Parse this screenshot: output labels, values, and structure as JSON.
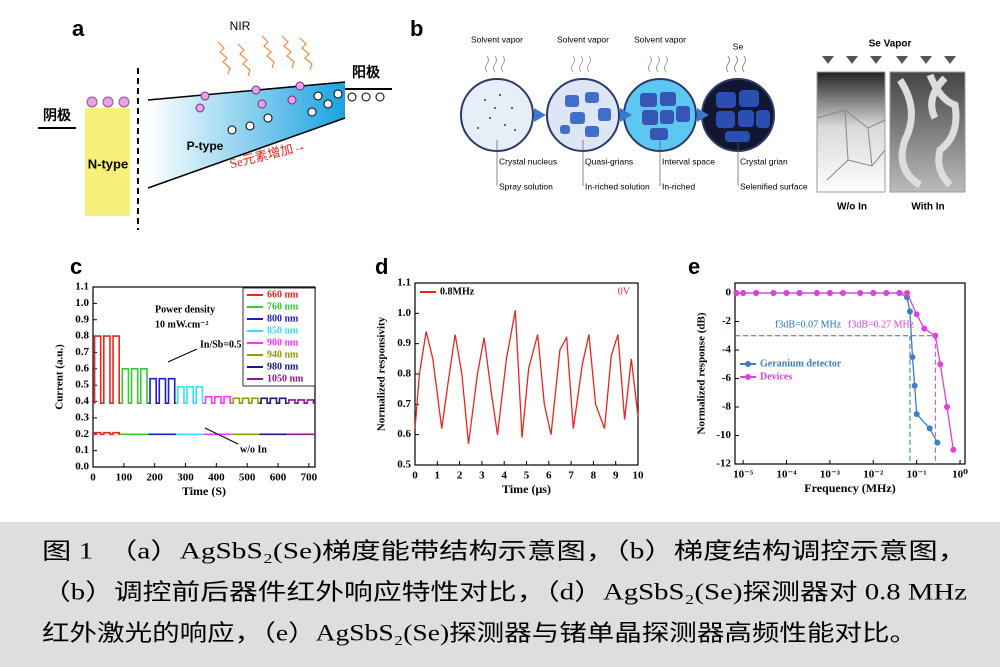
{
  "figure": {
    "panels": {
      "a": {
        "label": "a",
        "nir": "NIR",
        "anode": "阳极",
        "cathode": "阴极",
        "n_type": "N-type",
        "p_type": "P-type",
        "se_arrow": "Se元素增加→"
      },
      "b": {
        "label": "b",
        "steps": [
          {
            "vapor": "Solvent vapor",
            "top": "Crystal nucleus",
            "bottom": "Spray solution"
          },
          {
            "vapor": "Solvent vapor",
            "top": "Quasi-grians",
            "bottom": "In-riched solution"
          },
          {
            "vapor": "Solvent vapor",
            "top": "Interval space",
            "bottom": "In-riched"
          },
          {
            "vapor": "Se",
            "top": "Crystal grian",
            "bottom": "Selenified surface"
          }
        ],
        "se_vapor": "Se Vapor",
        "without": "W/o In",
        "with": "With In"
      }
    },
    "caption": {
      "lines": [
        "图 1　（a）AgSbS₂(Se)梯度能带结构示意图，（b）梯度结构调控示意图，",
        "（b）调控前后器件红外响应特性对比，（d）AgSbS₂(Se)探测器对 0.8 MHz",
        "红外激光的响应，（e）AgSbS₂(Se)探测器与锗单晶探测器高频性能对比。"
      ]
    }
  },
  "chart_data": [
    {
      "type": "line",
      "label": "c",
      "x_label": "Time (S)",
      "y_label": "Current (a.u.)",
      "xlim": [
        0,
        720
      ],
      "ylim": [
        0,
        1.1
      ],
      "xticks": [
        0,
        100,
        200,
        300,
        400,
        500,
        600,
        700
      ],
      "yticks": [
        {
          "value": 0,
          "label": "0.0"
        },
        0.1,
        0.2,
        0.3,
        0.4,
        0.5,
        0.6,
        0.7,
        0.8,
        0.9,
        {
          "value": 1,
          "label": "1.0"
        },
        1.1
      ],
      "annotations": [
        {
          "text": "Power density"
        },
        {
          "text": "10 mW.cm⁻²"
        },
        {
          "text": "In/Sb=0.5"
        },
        {
          "text": "w/o In"
        }
      ],
      "legend": "upper right",
      "series": [
        {
          "name": "660 nm",
          "color": "#e8261f",
          "x": [
            0,
            5,
            5,
            25,
            25,
            35,
            35,
            55,
            55,
            65,
            65,
            85,
            85,
            90,
            90,
            0,
            5,
            5,
            25,
            25,
            35,
            35,
            55,
            55,
            65,
            65,
            85,
            85,
            90
          ],
          "values": [
            0.39,
            0.39,
            0.8,
            0.8,
            0.39,
            0.39,
            0.8,
            0.8,
            0.39,
            0.39,
            0.8,
            0.8,
            0.39,
            0.39,
            null,
            0.2,
            0.2,
            0.21,
            0.21,
            0.2,
            0.2,
            0.21,
            0.21,
            0.2,
            0.2,
            0.21,
            0.21,
            0.2,
            0.2
          ]
        },
        {
          "name": "760 nm",
          "color": "#33cc33",
          "x": [
            90,
            95,
            95,
            115,
            115,
            125,
            125,
            145,
            145,
            155,
            155,
            175,
            175,
            180,
            180,
            90,
            180
          ],
          "values": [
            0.39,
            0.39,
            0.6,
            0.6,
            0.39,
            0.39,
            0.6,
            0.6,
            0.39,
            0.39,
            0.6,
            0.6,
            0.39,
            0.39,
            null,
            0.2,
            0.2
          ]
        },
        {
          "name": "800 nm",
          "color": "#1f1fbf",
          "x": [
            180,
            185,
            185,
            205,
            205,
            215,
            215,
            235,
            235,
            245,
            245,
            265,
            265,
            270,
            270,
            180,
            270
          ],
          "values": [
            0.39,
            0.39,
            0.54,
            0.54,
            0.39,
            0.39,
            0.54,
            0.54,
            0.39,
            0.39,
            0.54,
            0.54,
            0.39,
            0.39,
            null,
            0.2,
            0.2
          ]
        },
        {
          "name": "850 nm",
          "color": "#33e0ff",
          "x": [
            270,
            275,
            275,
            295,
            295,
            305,
            305,
            325,
            325,
            335,
            335,
            355,
            355,
            360,
            360,
            270,
            360
          ],
          "values": [
            0.39,
            0.39,
            0.49,
            0.49,
            0.39,
            0.39,
            0.49,
            0.49,
            0.39,
            0.39,
            0.49,
            0.49,
            0.39,
            0.39,
            null,
            0.2,
            0.2
          ]
        },
        {
          "name": "900 nm",
          "color": "#ff33ff",
          "x": [
            360,
            365,
            365,
            385,
            385,
            395,
            395,
            415,
            415,
            425,
            425,
            445,
            445,
            450,
            450,
            360,
            450
          ],
          "values": [
            0.39,
            0.39,
            0.43,
            0.43,
            0.39,
            0.39,
            0.43,
            0.43,
            0.39,
            0.39,
            0.43,
            0.43,
            0.39,
            0.39,
            null,
            0.2,
            0.2
          ]
        },
        {
          "name": "940 nm",
          "color": "#999900",
          "x": [
            450,
            455,
            455,
            475,
            475,
            485,
            485,
            505,
            505,
            515,
            515,
            535,
            535,
            540,
            540,
            450,
            540
          ],
          "values": [
            0.39,
            0.39,
            0.42,
            0.42,
            0.39,
            0.39,
            0.42,
            0.42,
            0.39,
            0.39,
            0.42,
            0.42,
            0.39,
            0.39,
            null,
            0.2,
            0.2
          ]
        },
        {
          "name": "980 nm",
          "color": "#1a1a7a",
          "x": [
            540,
            545,
            545,
            565,
            565,
            575,
            575,
            595,
            595,
            605,
            605,
            625,
            625,
            630,
            630,
            540,
            630
          ],
          "values": [
            0.39,
            0.39,
            0.42,
            0.42,
            0.39,
            0.39,
            0.42,
            0.42,
            0.39,
            0.39,
            0.42,
            0.42,
            0.39,
            0.39,
            null,
            0.2,
            0.2
          ]
        },
        {
          "name": "1050 nm",
          "color": "#8b1a8b",
          "x": [
            630,
            635,
            635,
            655,
            655,
            665,
            665,
            685,
            685,
            695,
            695,
            715,
            715,
            720,
            720,
            630,
            720
          ],
          "values": [
            0.39,
            0.39,
            0.41,
            0.41,
            0.39,
            0.39,
            0.41,
            0.41,
            0.39,
            0.39,
            0.41,
            0.41,
            0.39,
            0.39,
            null,
            0.2,
            0.2
          ]
        }
      ]
    },
    {
      "type": "line",
      "label": "d",
      "x_label": "Time (μs)",
      "y_label": "Normalized responsivity",
      "xlim": [
        0,
        10
      ],
      "ylim": [
        0.5,
        1.1
      ],
      "xticks": [
        0,
        1,
        2,
        3,
        4,
        5,
        6,
        7,
        8,
        9,
        10
      ],
      "yticks": [
        0.5,
        0.6,
        0.7,
        0.8,
        0.9,
        {
          "value": 1,
          "label": "1.0"
        },
        1.1
      ],
      "annotations": [
        {
          "text": "0V",
          "color": "#e8261f"
        }
      ],
      "legend": "upper left",
      "series": [
        {
          "name": "0.8MHz",
          "color": "#e8261f",
          "x": [
            0,
            0.2,
            0.5,
            0.8,
            1.2,
            1.5,
            1.8,
            2.1,
            2.4,
            2.8,
            3.1,
            3.4,
            3.7,
            4.1,
            4.5,
            4.8,
            5.1,
            5.5,
            5.8,
            6.1,
            6.5,
            6.8,
            7.1,
            7.5,
            7.8,
            8.1,
            8.5,
            8.8,
            9.1,
            9.4,
            9.7,
            10
          ],
          "values": [
            0.62,
            0.8,
            0.94,
            0.85,
            0.62,
            0.78,
            0.93,
            0.8,
            0.57,
            0.8,
            0.92,
            0.75,
            0.6,
            0.85,
            1.01,
            0.59,
            0.82,
            0.93,
            0.7,
            0.6,
            0.88,
            0.92,
            0.62,
            0.83,
            0.93,
            0.7,
            0.62,
            0.86,
            0.93,
            0.65,
            0.85,
            0.66
          ]
        }
      ]
    },
    {
      "type": "line",
      "label": "e",
      "x_label": "Frequency (MHz)",
      "y_label": "Normalized response (dB)",
      "xscale": "log",
      "markers": true,
      "xlim": [
        6.5e-06,
        1.3
      ],
      "ylim": [
        -12,
        0.7
      ],
      "xticks": [
        {
          "value": 1e-05,
          "label": "10⁻⁵"
        },
        {
          "value": 0.0001,
          "label": "10⁻⁴"
        },
        {
          "value": 0.001,
          "label": "10⁻³"
        },
        {
          "value": 0.01,
          "label": "10⁻²"
        },
        {
          "value": 0.1,
          "label": "10⁻¹"
        },
        {
          "value": 1,
          "label": "10⁰"
        }
      ],
      "yticks": [
        0,
        -2,
        -4,
        -6,
        -8,
        -10,
        -12
      ],
      "hlines": [
        {
          "y": -3,
          "color": "#1f77b4"
        }
      ],
      "vlines": [
        {
          "x": 0.07,
          "color": "#1f77b4"
        },
        {
          "x": 0.27,
          "color": "#e040e0"
        }
      ],
      "annotations": [
        {
          "text": "f3dB=0.07 MHz",
          "color": "#1f77b4"
        },
        {
          "text": "f3dB=0.27 MHz",
          "color": "#e040e0"
        }
      ],
      "legend": "lower left",
      "series": [
        {
          "name": "Geranium detector",
          "color": "#3a7fc8",
          "x": [
            7e-06,
            1e-05,
            2e-05,
            5e-05,
            0.0001,
            0.0002,
            0.0005,
            0.001,
            0.002,
            0.005,
            0.01,
            0.02,
            0.04,
            0.06,
            0.07,
            0.08,
            0.09,
            0.1,
            0.2,
            0.3
          ],
          "values": [
            0,
            0,
            0,
            0,
            0,
            0,
            0,
            0,
            0,
            0,
            0,
            0,
            0,
            -0.3,
            -1.3,
            -4.5,
            -6.5,
            -8.5,
            -9.5,
            -10.5
          ]
        },
        {
          "name": "Devices",
          "color": "#e040e0",
          "x": [
            7e-06,
            1e-05,
            2e-05,
            5e-05,
            0.0001,
            0.0002,
            0.0005,
            0.001,
            0.002,
            0.005,
            0.01,
            0.02,
            0.04,
            0.06,
            0.1,
            0.15,
            0.27,
            0.35,
            0.5,
            0.7
          ],
          "values": [
            0,
            0,
            0,
            0,
            0,
            0,
            0,
            0,
            0,
            0,
            0,
            0,
            0,
            0,
            -1.5,
            -2.5,
            -3,
            -5,
            -8,
            -11
          ]
        }
      ]
    }
  ]
}
